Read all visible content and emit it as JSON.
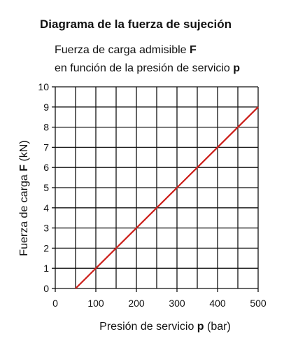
{
  "title": "Diagrama de la fuerza de sujeción",
  "subtitle": {
    "line1": "Fuerza de carga admisible ",
    "line1_bold": "F",
    "line2": "en función de la presión de servicio ",
    "line2_bold": "p"
  },
  "chart_data": {
    "type": "line",
    "xlabel": {
      "before": "Presión de servicio ",
      "bold": "p",
      "after": " (bar)"
    },
    "ylabel": {
      "before": "Fuerza de carga ",
      "bold": "F",
      "after": " (kN)"
    },
    "xlim": [
      0,
      500
    ],
    "ylim": [
      0,
      10
    ],
    "xticks": [
      0,
      100,
      200,
      300,
      400,
      500
    ],
    "yticks": [
      0,
      1,
      2,
      3,
      4,
      5,
      6,
      7,
      8,
      9,
      10
    ],
    "grid": true,
    "line_color": "#cc1f1a",
    "series": [
      {
        "x": [
          50,
          500
        ],
        "y": [
          0,
          9
        ]
      }
    ]
  }
}
